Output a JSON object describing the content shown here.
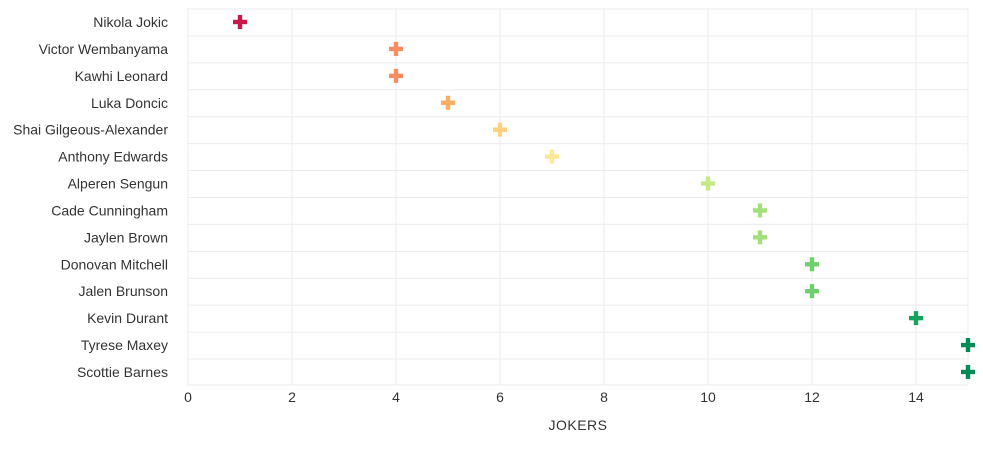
{
  "chart_data": {
    "type": "scatter",
    "title": "",
    "xlabel": "JOKERS",
    "ylabel": "",
    "xlim": [
      0,
      15
    ],
    "xticks": [
      0,
      2,
      4,
      6,
      8,
      10,
      12,
      14
    ],
    "grid": true,
    "marker": "plus",
    "categories": [
      "Nikola Jokic",
      "Victor Wembanyama",
      "Kawhi Leonard",
      "Luka Doncic",
      "Shai Gilgeous-Alexander",
      "Anthony Edwards",
      "Alperen Sengun",
      "Cade Cunningham",
      "Jaylen Brown",
      "Donovan Mitchell",
      "Jalen Brunson",
      "Kevin Durant",
      "Tyrese Maxey",
      "Scottie Barnes"
    ],
    "values": [
      1,
      4,
      4,
      5,
      6,
      7,
      10,
      11,
      11,
      12,
      12,
      14,
      15,
      15
    ],
    "colors": [
      "#c9184a",
      "#f98b60",
      "#f98b60",
      "#fbab62",
      "#fdd17f",
      "#fde89a",
      "#c5ea86",
      "#a3e07a",
      "#a3e07a",
      "#6fcf6f",
      "#6fcf6f",
      "#14a35c",
      "#008a55",
      "#008a55"
    ]
  }
}
